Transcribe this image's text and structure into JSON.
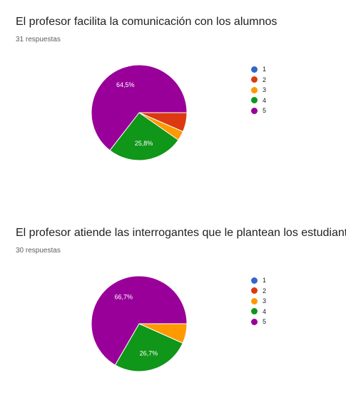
{
  "chart_data": [
    {
      "type": "pie",
      "title": "El profesor facilita la comunicación con los alumnos",
      "subtitle": "31 respuestas",
      "categories": [
        "1",
        "2",
        "3",
        "4",
        "5"
      ],
      "values": [
        0,
        6.5,
        3.2,
        25.8,
        64.5
      ],
      "colors": [
        "#3366cc",
        "#dc3912",
        "#ff9900",
        "#109618",
        "#990099"
      ],
      "data_labels": [
        "",
        "",
        "",
        "25,8%",
        "64,5%"
      ],
      "legend_position": "right"
    },
    {
      "type": "pie",
      "title": "El profesor atiende las interrogantes que le plantean los estudiantes",
      "subtitle": "30 respuestas",
      "categories": [
        "1",
        "2",
        "3",
        "4",
        "5"
      ],
      "values": [
        0,
        0,
        6.7,
        26.7,
        66.7
      ],
      "colors": [
        "#3366cc",
        "#dc3912",
        "#ff9900",
        "#109618",
        "#990099"
      ],
      "data_labels": [
        "",
        "",
        "",
        "26,7%",
        "66,7%"
      ],
      "legend_position": "right"
    }
  ]
}
